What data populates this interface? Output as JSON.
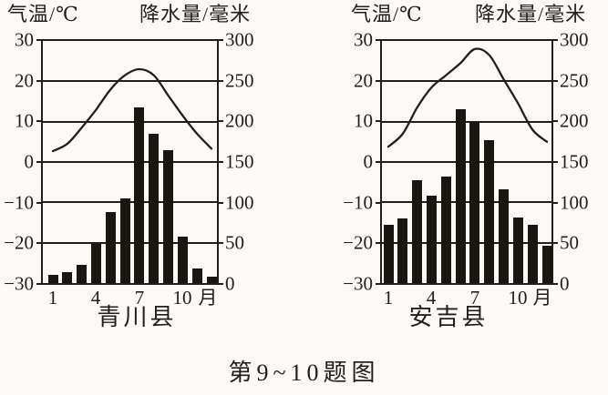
{
  "page": {
    "caption": "第9~10题图",
    "colors": {
      "ink": "#221e1b",
      "bar": "#1c1612",
      "paper": "#fbfaf7"
    }
  },
  "chart_data": [
    {
      "type": "bar+line",
      "title": "青川县",
      "temp_axis": {
        "label": "气温/℃",
        "ticks": [
          "30",
          "20",
          "10",
          "0",
          "−10",
          "−20",
          "−30"
        ],
        "min": -30,
        "max": 30
      },
      "precip_axis": {
        "label": "降水量/毫米",
        "ticks": [
          "300",
          "250",
          "200",
          "150",
          "100",
          "50",
          "0"
        ],
        "min": 0,
        "max": 300
      },
      "x_axis": {
        "labels": [
          "1",
          "4",
          "7",
          "10"
        ],
        "label_months": [
          1,
          4,
          7,
          10
        ],
        "unit": "月",
        "months": 12
      },
      "grid": true,
      "legend": false,
      "series": [
        {
          "name": "气温",
          "type": "line",
          "unit": "℃",
          "values": [
            2.7,
            4.5,
            8.5,
            13,
            18,
            21.5,
            23,
            21.5,
            16.5,
            11.5,
            7,
            3.3
          ]
        },
        {
          "name": "降水量",
          "type": "bar",
          "unit": "毫米",
          "values": [
            10,
            13,
            22,
            48,
            88,
            105,
            218,
            185,
            165,
            58,
            18,
            8
          ]
        }
      ]
    },
    {
      "type": "bar+line",
      "title": "安吉县",
      "temp_axis": {
        "label": "气温/℃",
        "ticks": [
          "30",
          "20",
          "10",
          "0",
          "−10",
          "−20",
          "−30"
        ],
        "min": -30,
        "max": 30
      },
      "precip_axis": {
        "label": "降水量/毫米",
        "ticks": [
          "300",
          "250",
          "200",
          "150",
          "100",
          "50",
          "0"
        ],
        "min": 0,
        "max": 300
      },
      "x_axis": {
        "labels": [
          "1",
          "4",
          "7",
          "10"
        ],
        "label_months": [
          1,
          4,
          7,
          10
        ],
        "unit": "月",
        "months": 12
      },
      "grid": true,
      "legend": false,
      "series": [
        {
          "name": "气温",
          "type": "line",
          "unit": "℃",
          "values": [
            3.8,
            7,
            13.5,
            18.5,
            21.5,
            24.5,
            28,
            26.5,
            20.5,
            14.5,
            8,
            5
          ]
        },
        {
          "name": "降水量",
          "type": "bar",
          "unit": "毫米",
          "values": [
            72,
            80,
            127,
            108,
            132,
            215,
            200,
            177,
            116,
            81,
            72,
            46
          ]
        }
      ]
    }
  ]
}
